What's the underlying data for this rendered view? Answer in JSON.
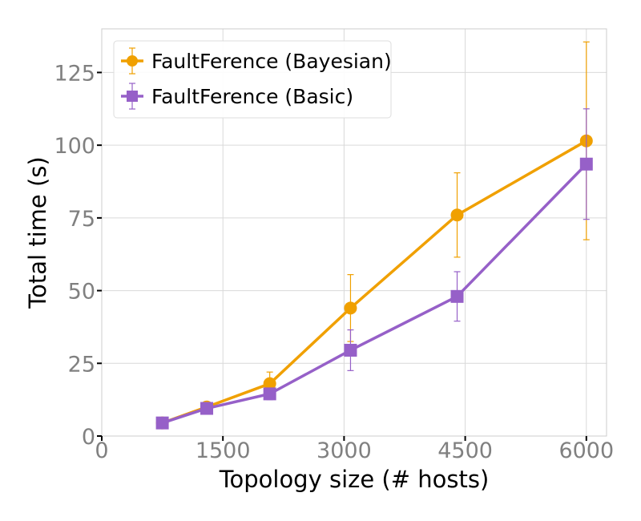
{
  "chart_data": {
    "type": "line",
    "xlabel": "Topology size (# hosts)",
    "ylabel": "Total time (s)",
    "xlim": [
      0,
      6250
    ],
    "ylim": [
      0,
      140
    ],
    "x_ticks": [
      0,
      1500,
      3000,
      4500,
      6000
    ],
    "x_tick_labels": [
      "0",
      "1500",
      "3000",
      "4500",
      "6000"
    ],
    "y_ticks": [
      0,
      25,
      50,
      75,
      100,
      125
    ],
    "y_tick_labels": [
      "0",
      "25",
      "50",
      "75",
      "100",
      "125"
    ],
    "grid": true,
    "legend_position": "top-left",
    "x": [
      750,
      1300,
      2080,
      3080,
      4400,
      6000
    ],
    "series": [
      {
        "name": "FaultFerence (Bayesian)",
        "color": "#f0a000",
        "marker": "circle",
        "values": [
          4.5,
          10,
          18,
          44,
          76,
          101.5
        ],
        "err": [
          1.5,
          1.5,
          4,
          11.5,
          14.5,
          34
        ]
      },
      {
        "name": "FaultFerence (Basic)",
        "color": "#9660c8",
        "marker": "square",
        "values": [
          4.5,
          9.5,
          14.5,
          29.5,
          48,
          93.5
        ],
        "err": [
          1.5,
          1.5,
          2,
          7,
          8.5,
          19
        ]
      }
    ]
  }
}
